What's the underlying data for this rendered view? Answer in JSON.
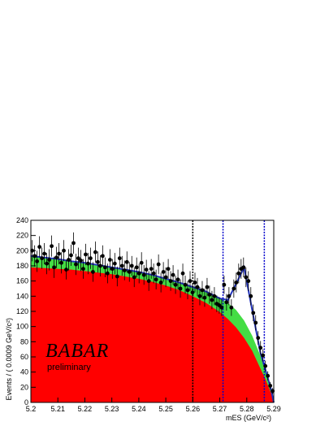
{
  "chart_data": {
    "type": "scatter",
    "x_label": "mES (GeV/c²)",
    "y_label": "Events / ( 0.0009 GeV/c²)",
    "logo": "BABAR",
    "logo_sub": "preliminary",
    "xlim": [
      5.2,
      5.29
    ],
    "xticks": [
      5.2,
      5.21,
      5.22,
      5.23,
      5.24,
      5.25,
      5.26,
      5.27,
      5.28,
      5.29
    ],
    "ylim": [
      0,
      240
    ],
    "yticks": [
      0,
      20,
      40,
      60,
      80,
      100,
      120,
      140,
      160,
      180,
      200,
      220,
      240
    ],
    "vlines": [
      {
        "x": 5.26,
        "color": "#000000"
      },
      {
        "x": 5.2712,
        "color": "#0000cc"
      },
      {
        "x": 5.2865,
        "color": "#0000cc"
      }
    ],
    "curves": {
      "x": [
        5.2,
        5.205,
        5.21,
        5.215,
        5.22,
        5.225,
        5.23,
        5.235,
        5.24,
        5.245,
        5.25,
        5.255,
        5.26,
        5.265,
        5.27,
        5.273,
        5.276,
        5.279,
        5.282,
        5.285,
        5.287,
        5.289,
        5.29
      ],
      "series": [
        {
          "style": "area",
          "color": "#44dd44",
          "values": [
            193,
            191,
            189,
            186,
            184,
            181,
            178,
            175,
            172,
            168,
            163,
            158,
            152,
            146,
            138,
            131,
            122,
            108,
            88,
            62,
            42,
            17,
            0
          ]
        },
        {
          "style": "area",
          "color": "#ff0000",
          "values": [
            178,
            177,
            176,
            175,
            173,
            171,
            169,
            166,
            163,
            159,
            154,
            148,
            140,
            131,
            119,
            110,
            99,
            85,
            68,
            45,
            30,
            12,
            0
          ]
        },
        {
          "style": "line",
          "color": "#2233bb",
          "values": [
            193,
            191,
            189,
            186,
            184,
            181,
            178,
            175,
            172,
            168,
            163,
            158,
            152,
            146,
            137,
            135,
            156,
            178,
            122,
            66,
            42,
            17,
            0
          ]
        }
      ]
    },
    "points": {
      "color": "#000000",
      "x": [
        5.2005,
        5.2014,
        5.2023,
        5.2032,
        5.2041,
        5.205,
        5.2059,
        5.2068,
        5.2077,
        5.2086,
        5.2095,
        5.2104,
        5.2113,
        5.2122,
        5.2131,
        5.214,
        5.2149,
        5.2158,
        5.2167,
        5.2176,
        5.2185,
        5.2194,
        5.2203,
        5.2212,
        5.2221,
        5.223,
        5.2239,
        5.2248,
        5.2257,
        5.2266,
        5.2275,
        5.2284,
        5.2293,
        5.2302,
        5.2311,
        5.232,
        5.2329,
        5.2338,
        5.2347,
        5.2356,
        5.2365,
        5.2374,
        5.2383,
        5.2392,
        5.2401,
        5.241,
        5.2419,
        5.2428,
        5.2437,
        5.2446,
        5.2455,
        5.2464,
        5.2473,
        5.2482,
        5.2491,
        5.25,
        5.2509,
        5.2518,
        5.2527,
        5.2536,
        5.2545,
        5.2554,
        5.2563,
        5.2572,
        5.2581,
        5.259,
        5.2599,
        5.2608,
        5.2617,
        5.2626,
        5.2635,
        5.2644,
        5.2653,
        5.2662,
        5.2671,
        5.268,
        5.2689,
        5.2698,
        5.2707,
        5.2716,
        5.2725,
        5.2734,
        5.2743,
        5.2752,
        5.2761,
        5.277,
        5.2779,
        5.2788,
        5.2797,
        5.2806,
        5.2815,
        5.2824,
        5.2833,
        5.2842,
        5.2851,
        5.286,
        5.2869,
        5.2878,
        5.2887,
        5.2896
      ],
      "values": [
        200,
        193,
        186,
        205,
        190,
        196,
        183,
        188,
        206,
        178,
        191,
        196,
        184,
        200,
        175,
        188,
        194,
        210,
        182,
        190,
        187,
        176,
        195,
        183,
        190,
        172,
        198,
        185,
        180,
        193,
        178,
        170,
        188,
        176,
        183,
        166,
        190,
        180,
        174,
        185,
        172,
        180,
        165,
        178,
        170,
        184,
        168,
        175,
        160,
        176,
        170,
        162,
        182,
        158,
        172,
        165,
        176,
        160,
        168,
        155,
        162,
        150,
        170,
        155,
        148,
        160,
        145,
        158,
        152,
        140,
        148,
        138,
        152,
        142,
        135,
        140,
        130,
        128,
        125,
        155,
        132,
        140,
        125,
        150,
        158,
        170,
        176,
        178,
        165,
        160,
        140,
        118,
        105,
        85,
        72,
        62,
        48,
        35,
        22,
        15
      ],
      "errors": [
        14,
        14,
        14,
        14,
        14,
        14,
        14,
        14,
        14,
        14,
        14,
        14,
        14,
        14,
        13,
        14,
        14,
        14,
        14,
        14,
        14,
        13,
        14,
        14,
        14,
        13,
        14,
        14,
        14,
        14,
        13,
        13,
        14,
        13,
        14,
        13,
        14,
        13,
        13,
        14,
        13,
        13,
        13,
        13,
        13,
        14,
        13,
        13,
        13,
        13,
        13,
        13,
        13,
        13,
        13,
        13,
        13,
        13,
        13,
        12,
        13,
        12,
        13,
        12,
        12,
        13,
        12,
        13,
        12,
        12,
        12,
        12,
        12,
        12,
        12,
        12,
        11,
        11,
        11,
        12,
        11,
        12,
        11,
        12,
        13,
        13,
        13,
        13,
        13,
        13,
        12,
        11,
        10,
        9,
        9,
        8,
        7,
        6,
        5,
        4
      ]
    }
  }
}
